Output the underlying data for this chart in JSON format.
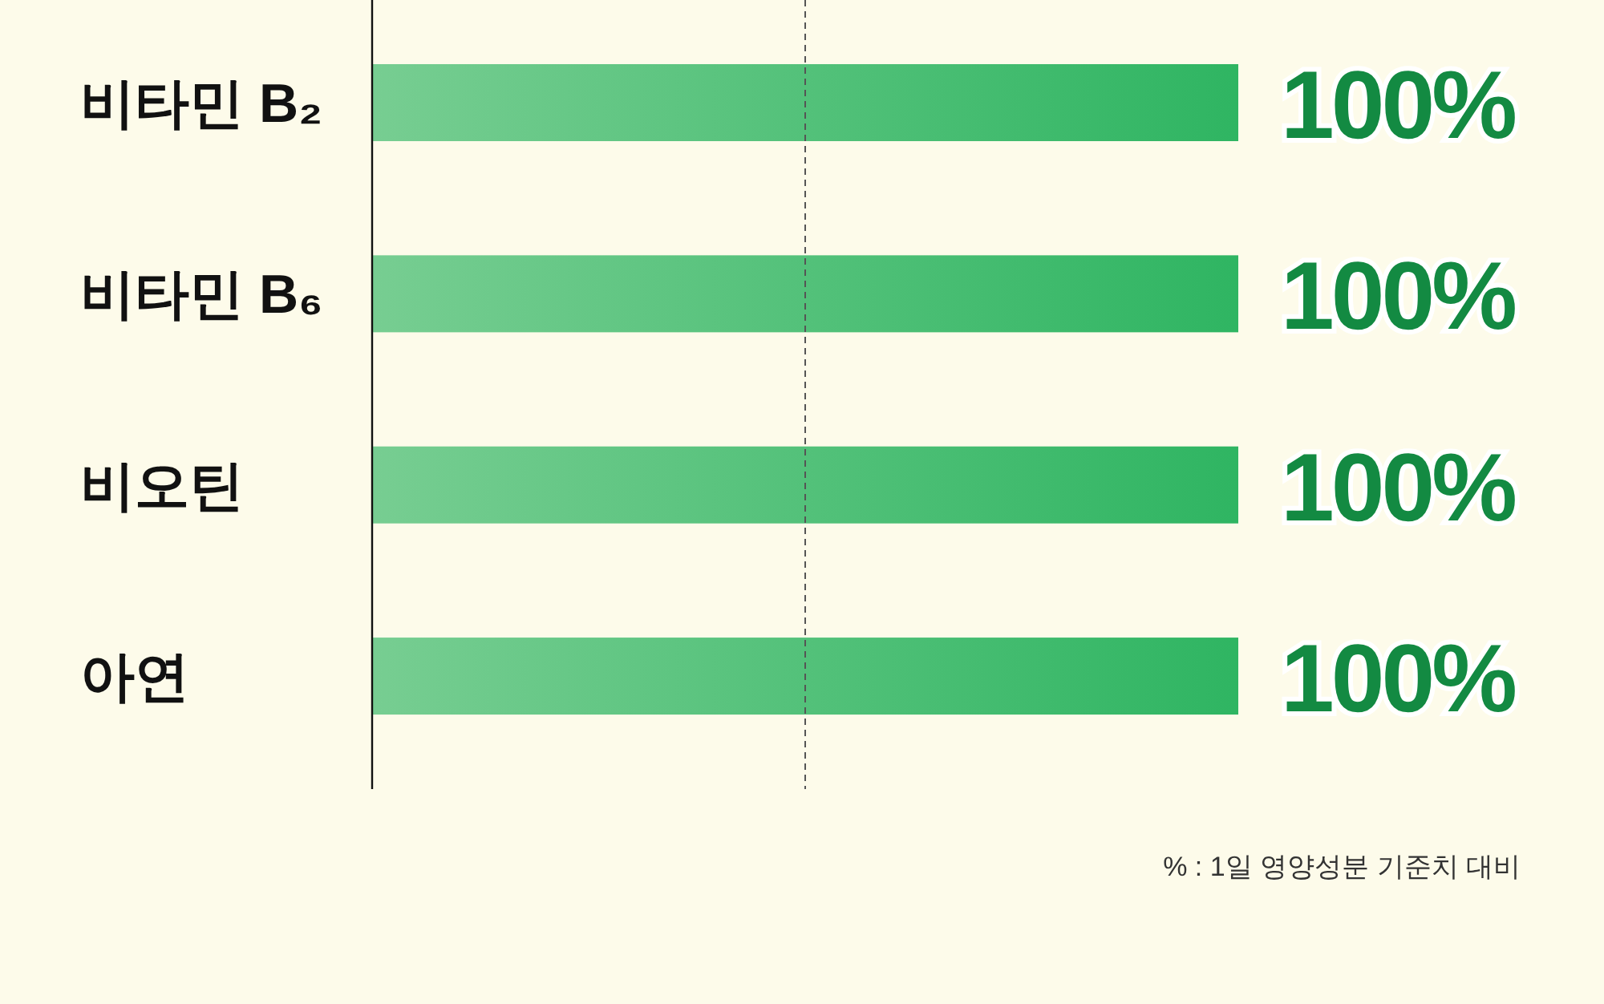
{
  "chart_data": {
    "type": "bar",
    "orientation": "horizontal",
    "categories": [
      "비타민 B₂",
      "비타민 B₆",
      "비오틴",
      "아연"
    ],
    "series": [
      {
        "color": "#2fb562",
        "values": [
          100,
          100,
          100,
          100
        ],
        "value_labels": [
          "100%",
          "100%",
          "100%",
          "100%"
        ]
      }
    ],
    "ref_lines": [
      {
        "axis": "x",
        "value": 50,
        "line_style": "dashed",
        "color": "#555555"
      }
    ],
    "annotations": [
      "% : 1일 영양성분 기준치 대비"
    ]
  }
}
